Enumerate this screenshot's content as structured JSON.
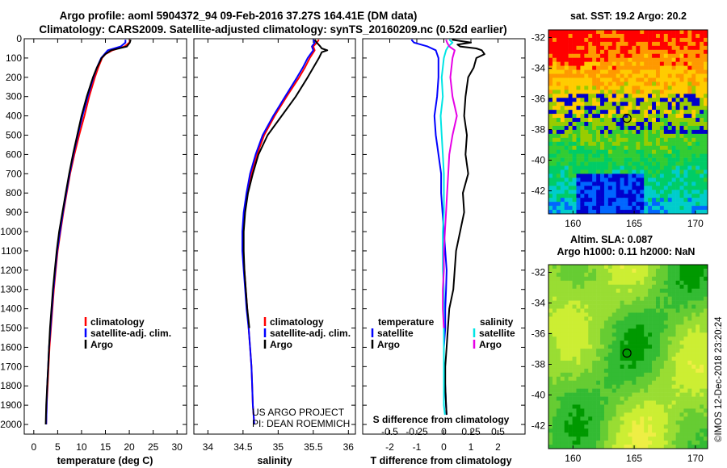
{
  "title_line1": "Argo profile: aoml 5904372_94 09-Feb-2016 37.27S 164.41E (DM data)",
  "title_line2": "Climatology: CARS2009. Satellite-adjusted climatology: synTS_20160209.nc (0.52d earlier)",
  "credit_line1": "US ARGO PROJECT",
  "credit_line2": "PI: DEAN ROEMMICH",
  "stamp": "©IMOS 12-Dec-2018 23:20:24",
  "colors": {
    "climatology": "#ff0000",
    "satellite": "#0000ff",
    "argo": "#000000",
    "temp_sat": "#0000ff",
    "sal_sat": "#00e5e5",
    "sal_argo": "#e600e6"
  },
  "chart_data": [
    {
      "type": "line",
      "panel": "temperature",
      "xlabel": "temperature (deg C)",
      "ylabel": "",
      "xlim": [
        -2,
        32
      ],
      "ylim": [
        2050,
        0
      ],
      "xticks": [
        0,
        5,
        10,
        15,
        20,
        25,
        30
      ],
      "yticks": [
        0,
        100,
        200,
        300,
        400,
        500,
        600,
        700,
        800,
        900,
        1000,
        1100,
        1200,
        1300,
        1400,
        1500,
        1600,
        1700,
        1800,
        1900,
        2000
      ],
      "legend": [
        "climatology",
        "satellite-adj. clim.",
        "Argo"
      ],
      "series": [
        {
          "name": "climatology",
          "color": "#ff0000",
          "depth": [
            5,
            20,
            40,
            60,
            80,
            100,
            150,
            200,
            300,
            400,
            500,
            600,
            700,
            800,
            900,
            1000,
            1100,
            1200,
            1300,
            1400,
            1500,
            1600,
            1700,
            1800,
            1900,
            2000
          ],
          "values": [
            20.2,
            20.0,
            19.0,
            16.5,
            15.0,
            14.3,
            13.5,
            12.8,
            11.6,
            10.6,
            9.5,
            8.5,
            7.6,
            6.9,
            6.2,
            5.6,
            5.0,
            4.6,
            4.2,
            3.9,
            3.6,
            3.3,
            3.1,
            2.9,
            2.7,
            2.6
          ]
        },
        {
          "name": "satellite-adj. clim.",
          "color": "#0000ff",
          "depth": [
            5,
            20,
            40,
            60,
            80,
            100,
            150,
            200,
            300,
            400,
            500,
            600,
            700,
            800,
            900,
            1000,
            1100,
            1200,
            1300,
            1400,
            1500,
            1600,
            1700,
            1800,
            1900,
            2000
          ],
          "values": [
            19.2,
            19.2,
            18.2,
            15.5,
            14.8,
            14.1,
            13.2,
            12.5,
            11.3,
            10.2,
            9.2,
            8.3,
            7.5,
            6.8,
            6.1,
            5.5,
            4.9,
            4.5,
            4.1,
            3.8,
            3.5,
            3.2,
            3.0,
            2.8,
            2.7,
            2.6
          ]
        },
        {
          "name": "Argo",
          "color": "#000000",
          "depth": [
            5,
            20,
            40,
            60,
            80,
            100,
            150,
            200,
            300,
            400,
            500,
            600,
            700,
            800,
            900,
            1000,
            1100,
            1200,
            1300,
            1400,
            1500,
            1600,
            1700,
            1800,
            1900,
            2000
          ],
          "values": [
            20.3,
            20.1,
            19.5,
            16.2,
            15.0,
            14.2,
            13.2,
            12.4,
            11.1,
            10.0,
            9.1,
            8.2,
            7.4,
            6.7,
            6.0,
            5.3,
            4.8,
            4.4,
            4.0,
            3.7,
            3.4,
            3.2,
            3.0,
            2.8,
            2.6,
            2.5
          ]
        }
      ]
    },
    {
      "type": "line",
      "panel": "salinity",
      "xlabel": "salinity",
      "ylabel": "",
      "xlim": [
        33.8,
        36.1
      ],
      "ylim": [
        2050,
        0
      ],
      "xticks": [
        34,
        34.5,
        35,
        35.5,
        36
      ],
      "legend": [
        "climatology",
        "satellite-adj. clim.",
        "Argo"
      ],
      "series": [
        {
          "name": "climatology",
          "color": "#ff0000",
          "depth": [
            5,
            20,
            40,
            60,
            100,
            150,
            200,
            300,
            400,
            500,
            600,
            700,
            800,
            900,
            1000,
            1100,
            1200,
            1300,
            1400,
            1500,
            1600,
            1700,
            1800,
            1900,
            2000
          ],
          "values": [
            35.58,
            35.55,
            35.5,
            35.52,
            35.45,
            35.38,
            35.3,
            35.12,
            34.95,
            34.8,
            34.7,
            34.62,
            34.56,
            34.52,
            34.5,
            34.5,
            34.52,
            34.54,
            34.56,
            34.58,
            34.6,
            34.62,
            34.63,
            34.64,
            34.66
          ]
        },
        {
          "name": "satellite-adj. clim.",
          "color": "#0000ff",
          "depth": [
            5,
            20,
            40,
            60,
            100,
            150,
            200,
            300,
            400,
            500,
            600,
            700,
            800,
            900,
            1000,
            1100,
            1200,
            1300,
            1400,
            1500,
            1600,
            1700,
            1800,
            1900,
            2000
          ],
          "values": [
            35.5,
            35.52,
            35.48,
            35.5,
            35.42,
            35.35,
            35.27,
            35.1,
            34.93,
            34.78,
            34.68,
            34.6,
            34.55,
            34.51,
            34.49,
            34.49,
            34.51,
            34.53,
            34.55,
            34.58,
            34.6,
            34.62,
            34.63,
            34.64,
            34.66
          ]
        },
        {
          "name": "Argo",
          "color": "#000000",
          "depth": [
            5,
            20,
            40,
            50,
            60,
            70,
            100,
            150,
            200,
            300,
            400,
            500,
            600,
            700,
            800,
            900,
            1000,
            1100,
            1200,
            1300,
            1400,
            1500
          ],
          "values": [
            35.52,
            35.55,
            35.6,
            35.62,
            35.7,
            35.62,
            35.58,
            35.5,
            35.42,
            35.25,
            35.05,
            34.85,
            34.72,
            34.64,
            34.57,
            34.53,
            34.51,
            34.51,
            34.52,
            34.54,
            34.56,
            34.59
          ]
        }
      ]
    },
    {
      "type": "line",
      "panel": "difference",
      "xlabel": "T difference from climatology",
      "xlabel_top": "S difference from climatology",
      "xlim": [
        -3,
        3
      ],
      "ylim": [
        2050,
        0
      ],
      "xticks": [
        -2,
        -1,
        0,
        1,
        2
      ],
      "xticks_top": [
        "-0.5",
        "-0.25",
        "0",
        "0.25",
        "0.5"
      ],
      "legend_left_title": "temperature",
      "legend_right_title": "salinity",
      "legend_left": [
        "satellite",
        "Argo"
      ],
      "legend_right": [
        "satellite",
        "Argo"
      ],
      "series": [
        {
          "name": "temperature satellite",
          "color": "#0000ff",
          "depth": [
            5,
            20,
            40,
            60,
            100,
            200,
            300,
            400,
            500,
            600,
            700,
            800,
            900,
            1000,
            1100,
            1200,
            1300,
            1400,
            1500,
            1600,
            1700,
            1800,
            1900,
            1950
          ],
          "values": [
            -1.2,
            -1.1,
            -0.6,
            -0.3,
            -0.2,
            -0.2,
            -0.25,
            -0.35,
            -0.3,
            -0.2,
            -0.1,
            -0.1,
            -0.05,
            0.0,
            0.05,
            0.1,
            0.08,
            0.05,
            0.05,
            0.0,
            0.0,
            0.05,
            0.08,
            0.1
          ]
        },
        {
          "name": "temperature Argo",
          "color": "#000000",
          "depth": [
            5,
            20,
            30,
            40,
            50,
            60,
            80,
            100,
            150,
            200,
            300,
            400,
            500,
            600,
            700,
            800,
            900,
            1000,
            1100,
            1200,
            1300,
            1400,
            1500,
            1600,
            1700,
            1800,
            1900,
            1950
          ],
          "values": [
            0.3,
            1.0,
            0.5,
            0.6,
            1.2,
            1.4,
            1.5,
            1.2,
            1.1,
            0.9,
            0.8,
            0.75,
            0.85,
            0.8,
            0.9,
            0.7,
            0.75,
            0.6,
            0.45,
            0.4,
            0.35,
            0.2,
            0.15,
            0.1,
            0.05,
            0.05,
            0.08,
            0.1
          ]
        },
        {
          "name": "salinity satellite",
          "color": "#00e5e5",
          "depth": [
            5,
            20,
            40,
            60,
            100,
            200,
            300,
            400,
            500,
            600,
            700,
            800,
            900,
            1000,
            1100,
            1200,
            1300,
            1400,
            1500,
            1600,
            1700,
            1800,
            1900,
            1950
          ],
          "values": [
            0.05,
            0.08,
            0.04,
            0.02,
            0.0,
            -0.02,
            -0.01,
            -0.03,
            -0.02,
            -0.01,
            0.0,
            0.0,
            0.0,
            -0.01,
            -0.01,
            -0.01,
            0.0,
            0.0,
            0.0,
            0.0,
            0.0,
            0.0,
            0.0,
            0.01
          ]
        },
        {
          "name": "salinity Argo",
          "color": "#e600e6",
          "depth": [
            5,
            20,
            40,
            60,
            100,
            200,
            300,
            400,
            500,
            600,
            700,
            800,
            900,
            1000,
            1100,
            1200,
            1300,
            1400,
            1500
          ],
          "values": [
            0.02,
            0.03,
            0.05,
            0.1,
            0.08,
            0.06,
            0.08,
            0.12,
            0.08,
            0.05,
            0.04,
            0.03,
            0.02,
            0.01,
            0.0,
            0.0,
            -0.01,
            -0.01,
            0.0
          ]
        }
      ]
    },
    {
      "type": "heatmap",
      "panel": "sst_map",
      "title": "sat. SST: 19.2 Argo: 20.2",
      "xlim": [
        158,
        171
      ],
      "ylim": [
        -43.5,
        -31.5
      ],
      "xticks": [
        160,
        165,
        170
      ],
      "yticks": [
        -32,
        -34,
        -36,
        -38,
        -40,
        -42
      ],
      "marker": {
        "lon": 164.41,
        "lat": -37.27
      },
      "colors": [
        "#ff0000",
        "#ff9900",
        "#ffcc00",
        "#99cc00",
        "#33cc33",
        "#00cc66",
        "#00cccc",
        "#0066ff",
        "#0000cc"
      ]
    },
    {
      "type": "heatmap",
      "panel": "sla_map",
      "title_line1": "Altim. SLA: 0.087",
      "title_line2": "Argo h1000: 0.11 h2000: NaN",
      "xlim": [
        158,
        171
      ],
      "ylim": [
        -43.5,
        -31.5
      ],
      "xticks": [
        160,
        165,
        170
      ],
      "yticks": [
        -32,
        -34,
        -36,
        -38,
        -40,
        -42
      ],
      "marker": {
        "lon": 164.41,
        "lat": -37.27
      },
      "colors": [
        "#009900",
        "#33bb33",
        "#66cc33",
        "#99dd33",
        "#ccee33",
        "#eeee44"
      ]
    }
  ]
}
